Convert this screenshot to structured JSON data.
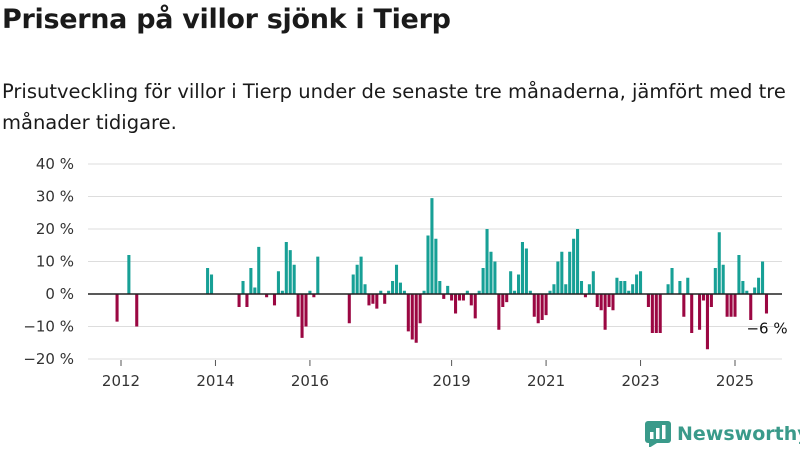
{
  "header": {
    "title": "Priserna på villor sjönk i Tierp",
    "subtitle": "Prisutveckling för villor i Tierp under de senaste tre månaderna, jämfört med tre månader tidigare."
  },
  "brand": {
    "name": "Newsworthy",
    "color": "#3a9a8a"
  },
  "colors": {
    "positive": "#17a096",
    "negative": "#9b0742",
    "grid": "#dddddd",
    "zero_line": "#222222"
  },
  "chart_data": {
    "type": "bar",
    "title": "Priserna på villor sjönk i Tierp",
    "subtitle": "Prisutveckling för villor i Tierp under de senaste tre månaderna, jämfört med tre månader tidigare.",
    "xlabel": "",
    "ylabel": "",
    "x_unit": "month",
    "ylim": [
      -20,
      40
    ],
    "y_ticks": [
      -20,
      -10,
      0,
      10,
      20,
      30,
      40
    ],
    "y_tick_labels": [
      "−20 %",
      "−10 %",
      "0 %",
      "10 %",
      "20 %",
      "30 %",
      "40 %"
    ],
    "x_ticks": [
      "2012",
      "2014",
      "2016",
      "2019",
      "2021",
      "2023",
      "2025"
    ],
    "grid": true,
    "last_value_label": "−6 %",
    "series": [
      {
        "values": [
          {
            "x": "2011-12",
            "y": -8.5
          },
          {
            "x": "2012-03",
            "y": 12
          },
          {
            "x": "2012-05",
            "y": -10
          },
          {
            "x": "2013-11",
            "y": 8
          },
          {
            "x": "2013-12",
            "y": 6
          },
          {
            "x": "2014-07",
            "y": -4
          },
          {
            "x": "2014-08",
            "y": 4
          },
          {
            "x": "2014-09",
            "y": -4
          },
          {
            "x": "2014-10",
            "y": 8
          },
          {
            "x": "2014-11",
            "y": 2
          },
          {
            "x": "2014-12",
            "y": 14.5
          },
          {
            "x": "2015-02",
            "y": -1
          },
          {
            "x": "2015-04",
            "y": -3.5
          },
          {
            "x": "2015-05",
            "y": 7
          },
          {
            "x": "2015-06",
            "y": 1
          },
          {
            "x": "2015-07",
            "y": 16
          },
          {
            "x": "2015-08",
            "y": 13.5
          },
          {
            "x": "2015-09",
            "y": 9
          },
          {
            "x": "2015-10",
            "y": -7
          },
          {
            "x": "2015-11",
            "y": -13.5
          },
          {
            "x": "2015-12",
            "y": -10
          },
          {
            "x": "2016-01",
            "y": 1
          },
          {
            "x": "2016-02",
            "y": -1
          },
          {
            "x": "2016-03",
            "y": 11.5
          },
          {
            "x": "2016-11",
            "y": -9
          },
          {
            "x": "2016-12",
            "y": 6
          },
          {
            "x": "2017-01",
            "y": 9
          },
          {
            "x": "2017-02",
            "y": 11.5
          },
          {
            "x": "2017-03",
            "y": 3
          },
          {
            "x": "2017-04",
            "y": -3.5
          },
          {
            "x": "2017-05",
            "y": -3
          },
          {
            "x": "2017-06",
            "y": -4.5
          },
          {
            "x": "2017-07",
            "y": 1
          },
          {
            "x": "2017-08",
            "y": -3
          },
          {
            "x": "2017-09",
            "y": 1
          },
          {
            "x": "2017-10",
            "y": 4
          },
          {
            "x": "2017-11",
            "y": 9
          },
          {
            "x": "2017-12",
            "y": 3.5
          },
          {
            "x": "2018-01",
            "y": 1
          },
          {
            "x": "2018-02",
            "y": -11.5
          },
          {
            "x": "2018-03",
            "y": -14
          },
          {
            "x": "2018-04",
            "y": -15
          },
          {
            "x": "2018-05",
            "y": -9
          },
          {
            "x": "2018-06",
            "y": 1
          },
          {
            "x": "2018-07",
            "y": 18
          },
          {
            "x": "2018-08",
            "y": 29.5
          },
          {
            "x": "2018-09",
            "y": 17
          },
          {
            "x": "2018-10",
            "y": 4
          },
          {
            "x": "2018-11",
            "y": -1.5
          },
          {
            "x": "2018-12",
            "y": 2.5
          },
          {
            "x": "2019-01",
            "y": -2
          },
          {
            "x": "2019-02",
            "y": -6
          },
          {
            "x": "2019-03",
            "y": -2
          },
          {
            "x": "2019-04",
            "y": -2
          },
          {
            "x": "2019-05",
            "y": 1
          },
          {
            "x": "2019-06",
            "y": -3.5
          },
          {
            "x": "2019-07",
            "y": -7.5
          },
          {
            "x": "2019-08",
            "y": 1
          },
          {
            "x": "2019-09",
            "y": 8
          },
          {
            "x": "2019-10",
            "y": 20
          },
          {
            "x": "2019-11",
            "y": 13
          },
          {
            "x": "2019-12",
            "y": 10
          },
          {
            "x": "2020-01",
            "y": -11
          },
          {
            "x": "2020-02",
            "y": -4
          },
          {
            "x": "2020-03",
            "y": -2.5
          },
          {
            "x": "2020-04",
            "y": 7
          },
          {
            "x": "2020-05",
            "y": 1
          },
          {
            "x": "2020-06",
            "y": 6
          },
          {
            "x": "2020-07",
            "y": 16
          },
          {
            "x": "2020-08",
            "y": 14
          },
          {
            "x": "2020-09",
            "y": 1
          },
          {
            "x": "2020-10",
            "y": -7
          },
          {
            "x": "2020-11",
            "y": -9
          },
          {
            "x": "2020-12",
            "y": -8
          },
          {
            "x": "2021-01",
            "y": -6.5
          },
          {
            "x": "2021-02",
            "y": 1
          },
          {
            "x": "2021-03",
            "y": 3
          },
          {
            "x": "2021-04",
            "y": 10
          },
          {
            "x": "2021-05",
            "y": 13
          },
          {
            "x": "2021-06",
            "y": 3
          },
          {
            "x": "2021-07",
            "y": 13
          },
          {
            "x": "2021-08",
            "y": 17
          },
          {
            "x": "2021-09",
            "y": 20
          },
          {
            "x": "2021-10",
            "y": 4
          },
          {
            "x": "2021-11",
            "y": -1
          },
          {
            "x": "2021-12",
            "y": 3
          },
          {
            "x": "2022-01",
            "y": 7
          },
          {
            "x": "2022-02",
            "y": -4
          },
          {
            "x": "2022-03",
            "y": -5
          },
          {
            "x": "2022-04",
            "y": -11
          },
          {
            "x": "2022-05",
            "y": -4
          },
          {
            "x": "2022-06",
            "y": -5
          },
          {
            "x": "2022-07",
            "y": 5
          },
          {
            "x": "2022-08",
            "y": 4
          },
          {
            "x": "2022-09",
            "y": 4
          },
          {
            "x": "2022-10",
            "y": 1
          },
          {
            "x": "2022-11",
            "y": 3
          },
          {
            "x": "2022-12",
            "y": 6
          },
          {
            "x": "2023-01",
            "y": 7
          },
          {
            "x": "2023-03",
            "y": -4
          },
          {
            "x": "2023-04",
            "y": -12
          },
          {
            "x": "2023-05",
            "y": -12
          },
          {
            "x": "2023-06",
            "y": -12
          },
          {
            "x": "2023-08",
            "y": 3
          },
          {
            "x": "2023-09",
            "y": 8
          },
          {
            "x": "2023-11",
            "y": 4
          },
          {
            "x": "2023-12",
            "y": -7
          },
          {
            "x": "2024-01",
            "y": 5
          },
          {
            "x": "2024-02",
            "y": -12
          },
          {
            "x": "2024-04",
            "y": -11
          },
          {
            "x": "2024-05",
            "y": -2
          },
          {
            "x": "2024-06",
            "y": -17
          },
          {
            "x": "2024-07",
            "y": -4
          },
          {
            "x": "2024-08",
            "y": 8
          },
          {
            "x": "2024-09",
            "y": 19
          },
          {
            "x": "2024-10",
            "y": 9
          },
          {
            "x": "2024-11",
            "y": -7
          },
          {
            "x": "2024-12",
            "y": -7
          },
          {
            "x": "2025-01",
            "y": -7
          },
          {
            "x": "2025-02",
            "y": 12
          },
          {
            "x": "2025-03",
            "y": 4
          },
          {
            "x": "2025-04",
            "y": 1
          },
          {
            "x": "2025-05",
            "y": -8
          },
          {
            "x": "2025-06",
            "y": 2
          },
          {
            "x": "2025-07",
            "y": 5
          },
          {
            "x": "2025-08",
            "y": 10
          },
          {
            "x": "2025-09",
            "y": -6
          }
        ]
      }
    ]
  }
}
